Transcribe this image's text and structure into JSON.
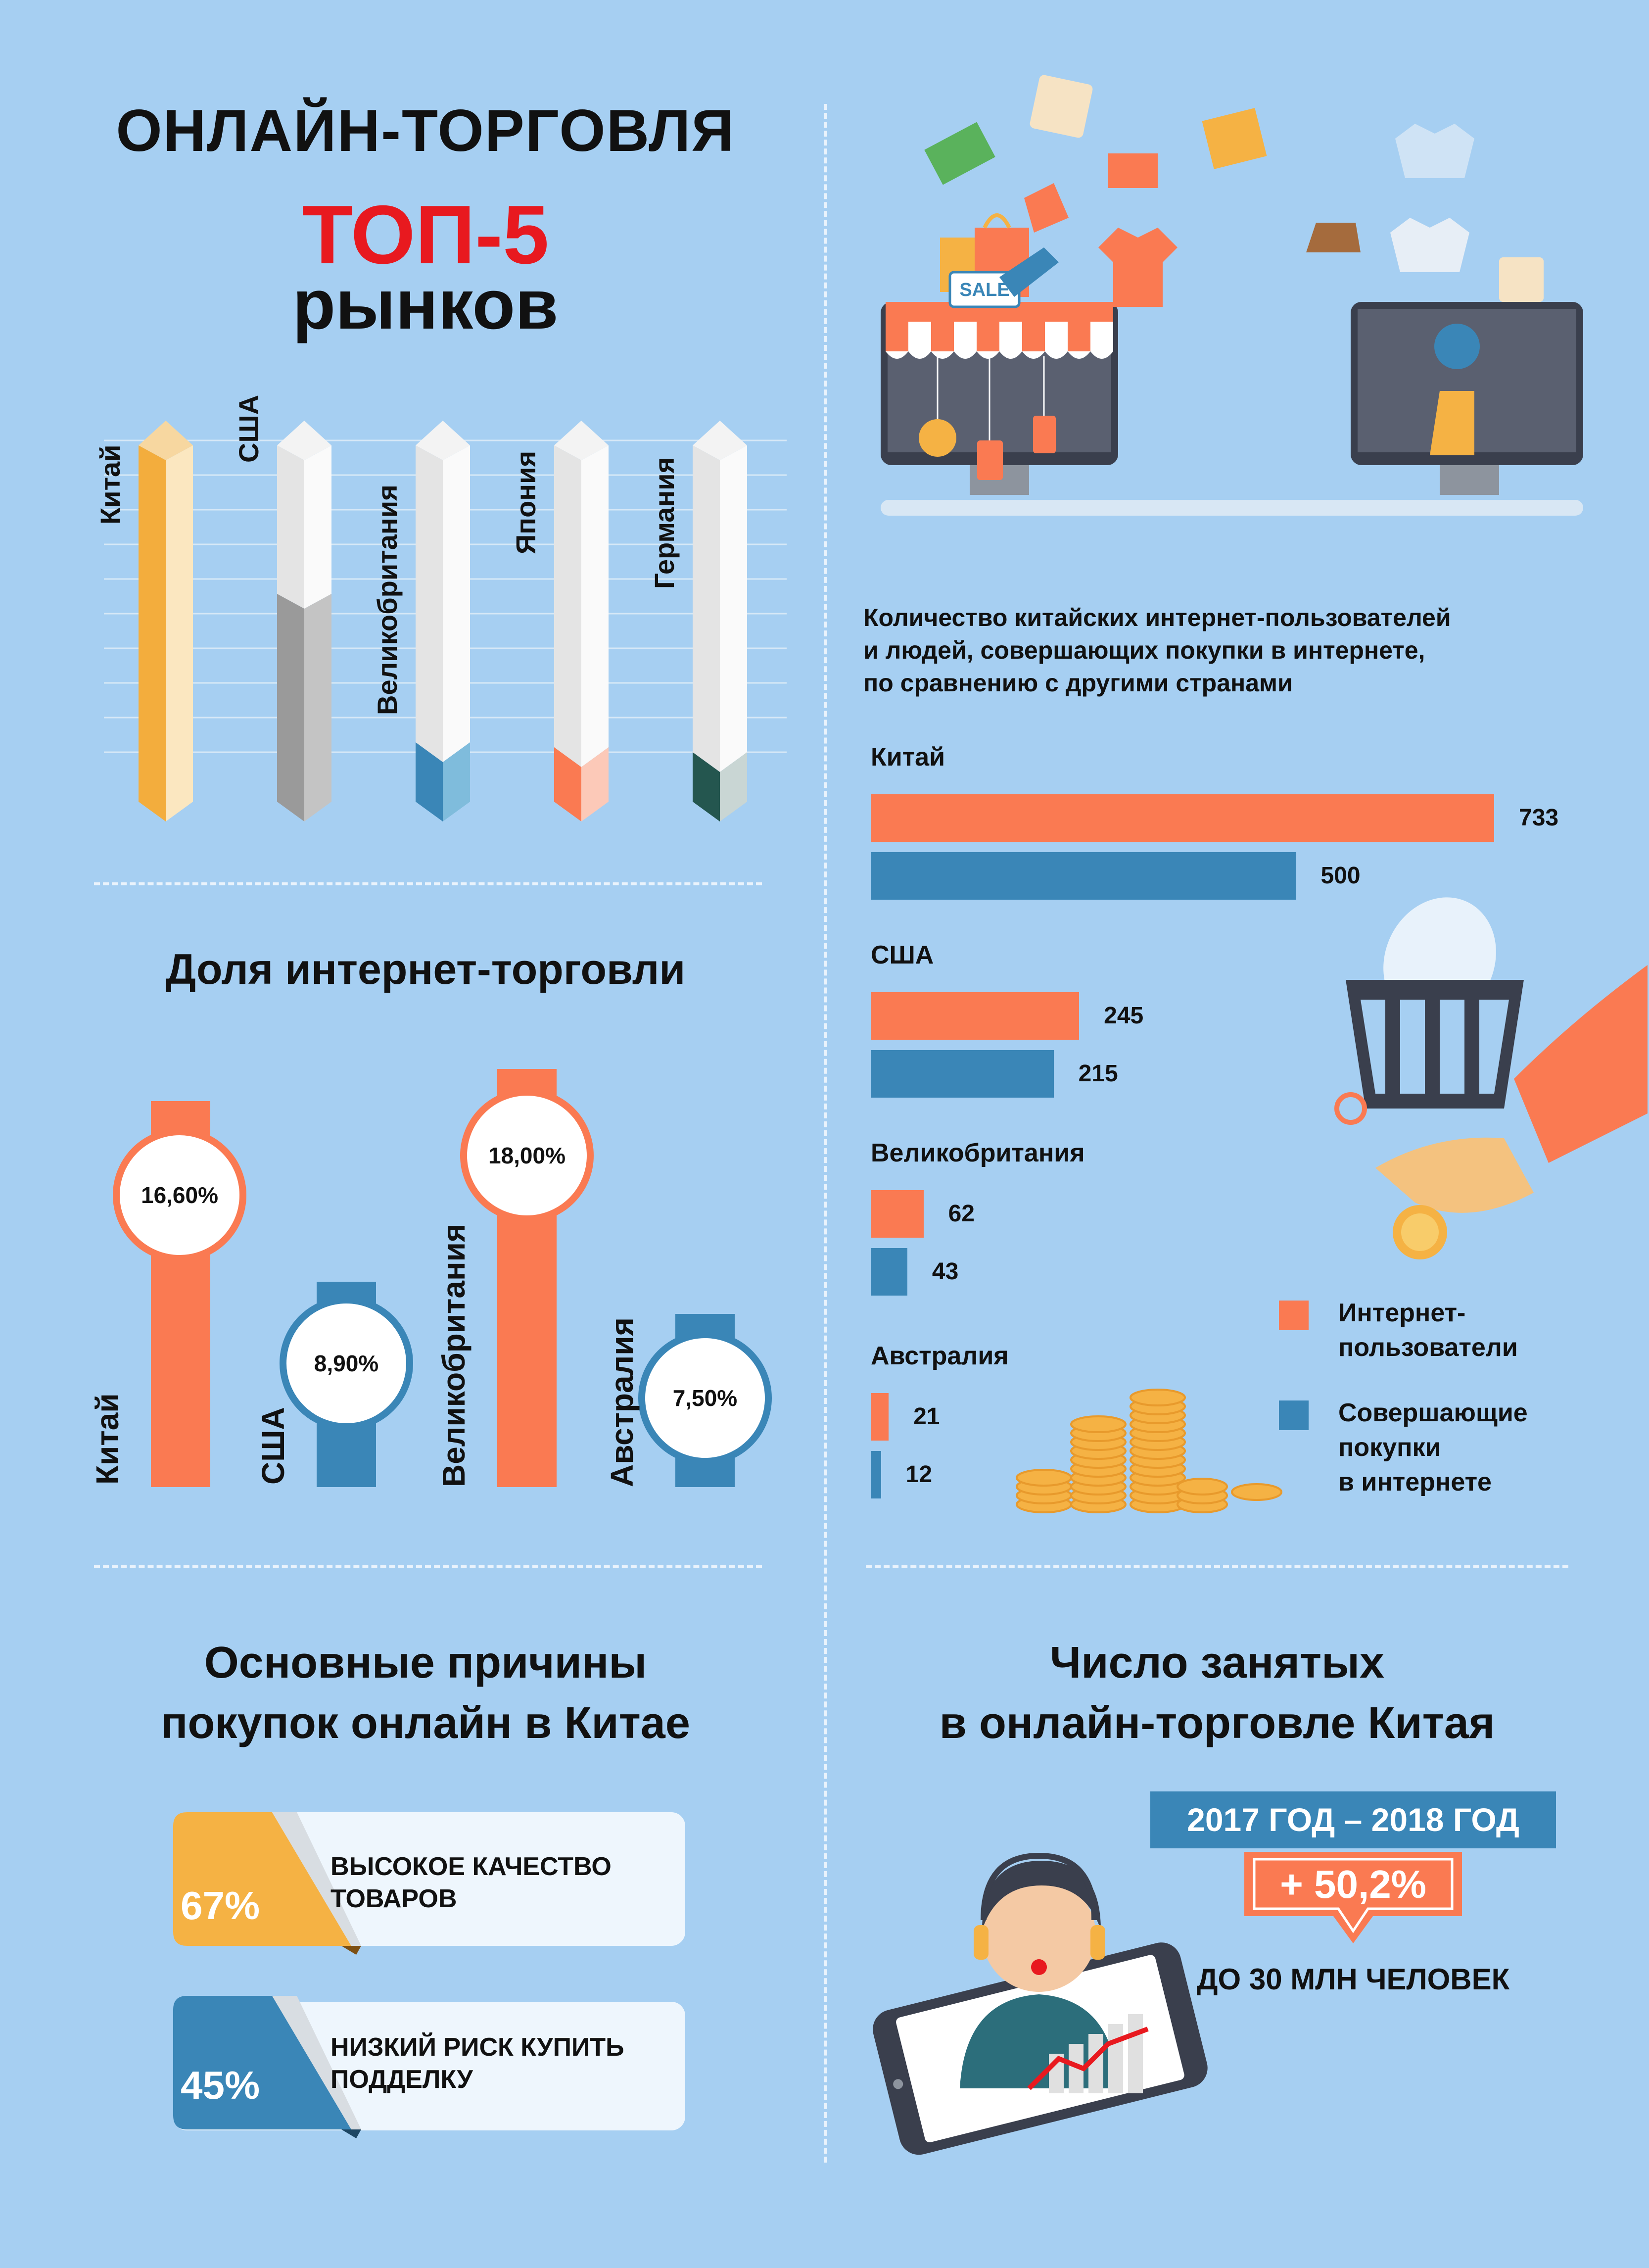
{
  "header": {
    "title": "ОНЛАЙН-ТОРГОВЛЯ",
    "top": "ТОП-5",
    "subtitle": "рынков"
  },
  "top_markets": [
    "Китай",
    "США",
    "Великобритания",
    "Япония",
    "Германия"
  ],
  "illustration": {
    "sale_tag": "SALE"
  },
  "share_section": {
    "title": "Доля интернет-торговли",
    "items": [
      {
        "country": "Китай",
        "value": "16,60%",
        "share": 16.6
      },
      {
        "country": "США",
        "value": "8,90%",
        "share": 8.9
      },
      {
        "country": "Великобритания",
        "value": "18,00%",
        "share": 18.0
      },
      {
        "country": "Австралия",
        "value": "7,50%",
        "share": 7.5
      }
    ]
  },
  "users_chart": {
    "title_lines": [
      "Количество китайских интернет-пользователей",
      "и людей, совершающих покупки в интернете,",
      "по сравнению с другими странами"
    ],
    "groups": [
      {
        "country": "Китай",
        "users": "733",
        "buyers": "500"
      },
      {
        "country": "США",
        "users": "245",
        "buyers": "215"
      },
      {
        "country": "Великобритания",
        "users": "62",
        "buyers": "43"
      },
      {
        "country": "Австралия",
        "users": "21",
        "buyers": "12"
      }
    ],
    "legend": {
      "users_lines": [
        "Интернет-",
        "пользователи"
      ],
      "buyers_lines": [
        "Совершающие",
        "покупки",
        "в интернете"
      ]
    }
  },
  "chart_data": {
    "type": "bar",
    "categories": [
      "Китай",
      "США",
      "Великобритания",
      "Австралия"
    ],
    "series": [
      {
        "name": "Интернет-пользователи",
        "values": [
          733,
          245,
          62,
          21
        ]
      },
      {
        "name": "Совершающие покупки в интернете",
        "values": [
          500,
          215,
          43,
          12
        ]
      }
    ],
    "colors": [
      "#fa7a52",
      "#3a86b7"
    ],
    "title": "Количество китайских интернет-пользователей и людей, совершающих покупки в интернете, по сравнению с другими странами"
  },
  "reasons": {
    "title_lines": [
      "Основные причины",
      "покупок онлайн в Китае"
    ],
    "items": [
      {
        "percent": "67%",
        "text_lines": [
          "ВЫСОКОЕ КАЧЕСТВО",
          "ТОВАРОВ"
        ],
        "color": "#f5b244"
      },
      {
        "percent": "45%",
        "text_lines": [
          "НИЗКИЙ РИСК КУПИТЬ",
          "ПОДДЕЛКУ"
        ],
        "color": "#3a86b7"
      }
    ]
  },
  "employment": {
    "title_lines": [
      "Число занятых",
      "в онлайн-торговле Китая"
    ],
    "period": "2017 ГОД – 2018 ГОД",
    "growth": "+ 50,2%",
    "note": "ДО 30 МЛН ЧЕЛОВЕК"
  },
  "colors": {
    "background": "#a6cff2",
    "orange": "#fa7a52",
    "blue": "#3a86b7",
    "yellow": "#f5b244",
    "red": "#e8191f"
  }
}
